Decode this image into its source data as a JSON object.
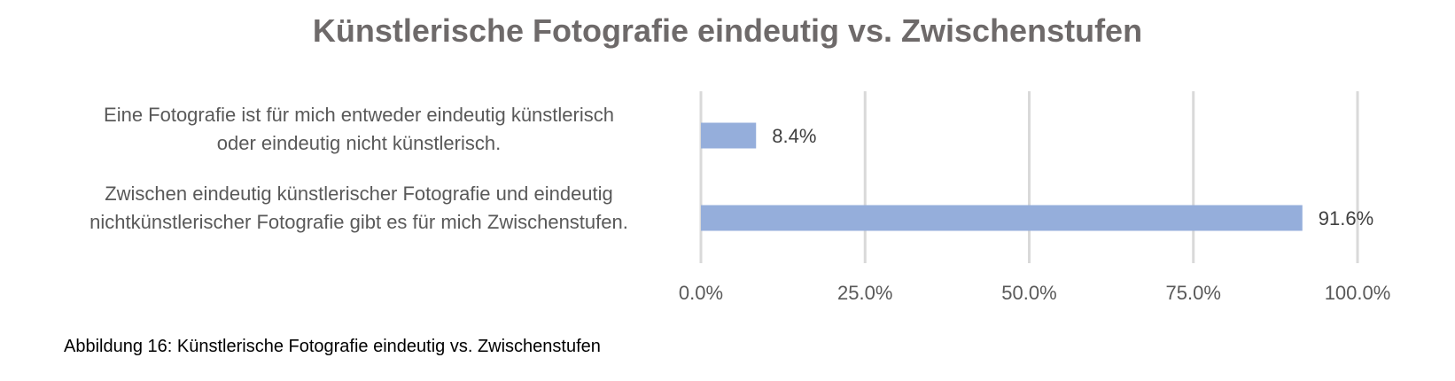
{
  "title": "Künstlerische Fotografie eindeutig vs. Zwischenstufen",
  "caption": "Abbildung 16: Künstlerische Fotografie eindeutig vs. Zwischenstufen",
  "colors": {
    "bar": "#95aedb",
    "grid": "#d9d9d9",
    "text": "#595959",
    "title": "#6e6a6a"
  },
  "chart_data": {
    "type": "bar",
    "orientation": "horizontal",
    "title": "Künstlerische Fotografie eindeutig vs. Zwischenstufen",
    "categories": [
      "Eine Fotografie ist für mich entweder eindeutig künstlerisch oder eindeutig nicht künstlerisch.",
      "Zwischen eindeutig künstlerischer Fotografie und eindeutig nichtkünstlerischer Fotografie gibt es für mich Zwischenstufen."
    ],
    "category_lines": [
      [
        "Eine Fotografie ist für mich entweder eindeutig künstlerisch",
        "oder eindeutig nicht künstlerisch."
      ],
      [
        "Zwischen eindeutig künstlerischer Fotografie und eindeutig",
        "nichtkünstlerischer Fotografie gibt es für mich Zwischenstufen."
      ]
    ],
    "values": [
      8.4,
      91.6
    ],
    "value_labels": [
      "8.4%",
      "91.6%"
    ],
    "xlim": [
      0,
      100
    ],
    "xticks": [
      0,
      25,
      50,
      75,
      100
    ],
    "xtick_labels": [
      "0.0%",
      "25.0%",
      "50.0%",
      "75.0%",
      "100.0%"
    ],
    "xlabel": "",
    "ylabel": "",
    "grid": true,
    "legend": false
  }
}
